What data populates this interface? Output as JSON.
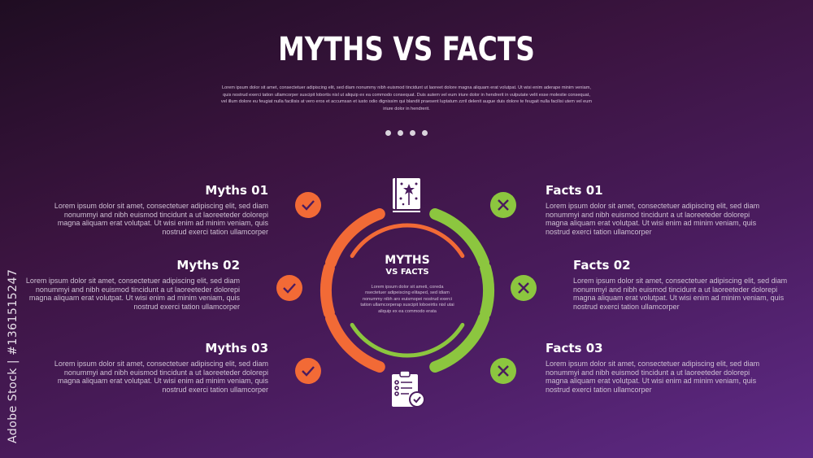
{
  "title": "MYTHS VS FACTS",
  "intro": "Lorem ipsum dolor sit amet, consectetuer adipiscing elit, sed diam nonummy nibh euismod tincidunt ut laoreet dolore magna aliquam erat volutpat. Ut wisi enim aderape minim veniam, quis nostrud exerci tation ullamcorper suscipit lobortis nisl ut aliquip ex ea commodo consequat. Duis autem vel eum iriure dolor in hendrerit in vulputate velit esse molestie consequat, vel illum dolore eu feugiat nulla facilisis at vero eros et accumsan et iusto odio dignissim qui blandit praesent luptatum zzril delenit augue duis dolore te feugait nulla facilisi utem vel eum iriure dolor in hendrerit.",
  "center": {
    "title": "MYTHS",
    "subtitle": "VS FACTS",
    "text": "Lorem ipsum dolor sit ameti, coreda nsectetuer adipeiscing elitaped, sed idiam nonummy nibh aro euismopei nostrud exerci tation ullamcorperap suscipit loboeirtis nisl utai aliquip ex ea commodo erata"
  },
  "body_text": "Lorem ipsum dolor sit amet, consectetuer adipiscing elit, sed diam nonummyi and nibh euismod tincidunt a ut laoreeteder dolorepi magna aliquam erat volutpat. Ut wisi enim ad minim veniam, quis nostrud exerci tation ullamcorper",
  "myths": [
    {
      "title": "Myths 01",
      "icon": "check-icon"
    },
    {
      "title": "Myths 02",
      "icon": "check-icon"
    },
    {
      "title": "Myths 03",
      "icon": "check-icon"
    }
  ],
  "facts": [
    {
      "title": "Facts 01",
      "icon": "x-icon"
    },
    {
      "title": "Facts 02",
      "icon": "x-icon"
    },
    {
      "title": "Facts 03",
      "icon": "x-icon"
    }
  ],
  "icons": {
    "top": "magic-book-icon",
    "bottom": "checklist-clipboard-icon"
  },
  "colors": {
    "myth": "#f26a36",
    "fact": "#8cc63f",
    "background": "#4a1c5e"
  },
  "watermark": "Adobe Stock | #1361515247"
}
